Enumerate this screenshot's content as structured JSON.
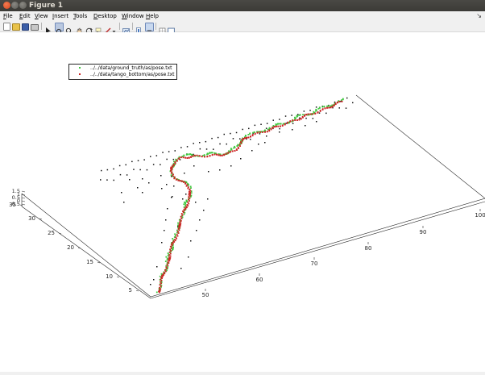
{
  "window": {
    "title": "Figure 1"
  },
  "menu": {
    "file": "File",
    "edit": "Edit",
    "view": "View",
    "insert": "Insert",
    "tools": "Tools",
    "desktop": "Desktop",
    "window": "Window",
    "help": "Help"
  },
  "toolbar": [
    "new-figure-icon",
    "open-file-icon",
    "save-icon",
    "print-icon",
    "edit-plot-icon",
    "zoom-in-icon",
    "zoom-out-icon",
    "pan-icon",
    "rotate-3d-icon",
    "data-cursor-icon",
    "brush-icon",
    "brush-dropdown-icon",
    "link-plot-icon",
    "colorbar-icon",
    "legend-icon",
    "grid-icon",
    "property-editor-icon"
  ],
  "legend": {
    "entries": [
      {
        "label": "../../data/ground_truth/as/pose.txt",
        "color": "#3ec83e"
      },
      {
        "label": "../../data/tango_bottom/as/pose.txt",
        "color": "#cc2222"
      }
    ]
  },
  "chart_data": {
    "type": "scatter3d",
    "series": [
      {
        "name": "../../data/ground_truth/as/pose.txt",
        "color": "#3ec83e"
      },
      {
        "name": "../../data/tango_bottom/as/pose.txt",
        "color": "#cc2222"
      }
    ],
    "x_ticks": [
      50,
      60,
      70,
      80,
      90,
      100
    ],
    "y_ticks": [
      5,
      10,
      15,
      20,
      25,
      30,
      35
    ],
    "z_ticks": [
      -0.5,
      0,
      0.5,
      1,
      1.5
    ],
    "x_tick_labels": [
      "50",
      "60",
      "70",
      "80",
      "90",
      "100"
    ],
    "y_tick_labels": [
      "5",
      "10",
      "15",
      "20",
      "25",
      "30",
      "35"
    ],
    "z_tick_labels": [
      "-0.5",
      "0",
      "0.5",
      "1",
      "1.5"
    ],
    "grid": false
  }
}
